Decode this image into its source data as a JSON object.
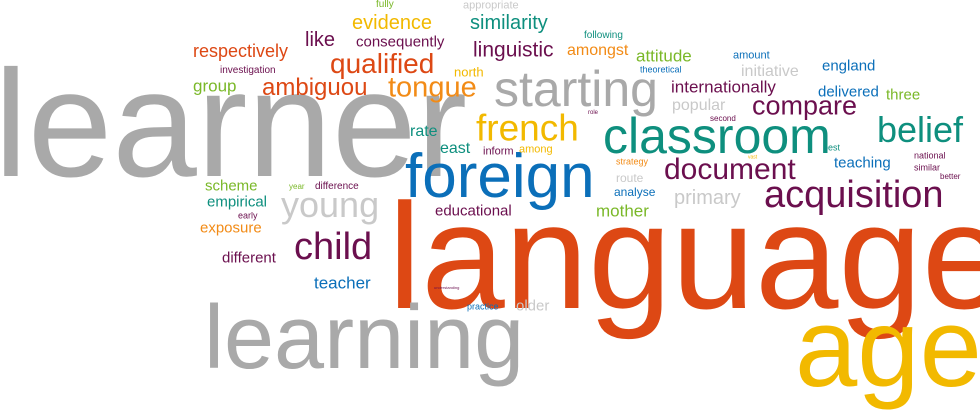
{
  "palette": {
    "gray": "#a9a9a9",
    "light_gray": "#c9c9c9",
    "red": "#dd4814",
    "blue": "#0b6fb9",
    "teal": "#0e8f7e",
    "green": "#7ab828",
    "yellow": "#f2b900",
    "purple": "#6b0f4e",
    "orange": "#f28b16"
  },
  "words": [
    {
      "text": "learner",
      "color": "gray"
    },
    {
      "text": "language",
      "color": "red"
    },
    {
      "text": "age",
      "color": "yellow"
    },
    {
      "text": "learning",
      "color": "gray"
    },
    {
      "text": "foreign",
      "color": "blue"
    },
    {
      "text": "classroom",
      "color": "teal"
    },
    {
      "text": "starting",
      "color": "gray"
    },
    {
      "text": "french",
      "color": "yellow"
    },
    {
      "text": "acquisition",
      "color": "purple"
    },
    {
      "text": "child",
      "color": "purple"
    },
    {
      "text": "belief",
      "color": "teal"
    },
    {
      "text": "young",
      "color": "light_gray"
    },
    {
      "text": "document",
      "color": "purple"
    },
    {
      "text": "compare",
      "color": "purple"
    },
    {
      "text": "tongue",
      "color": "orange"
    },
    {
      "text": "qualified",
      "color": "red"
    },
    {
      "text": "ambiguou",
      "color": "red"
    },
    {
      "text": "respectively",
      "color": "red"
    },
    {
      "text": "evidence",
      "color": "yellow"
    },
    {
      "text": "similarity",
      "color": "teal"
    },
    {
      "text": "linguistic",
      "color": "purple"
    },
    {
      "text": "like",
      "color": "purple"
    },
    {
      "text": "consequently",
      "color": "purple"
    },
    {
      "text": "amongst",
      "color": "orange"
    },
    {
      "text": "attitude",
      "color": "green"
    },
    {
      "text": "internationally",
      "color": "purple"
    },
    {
      "text": "initiative",
      "color": "light_gray"
    },
    {
      "text": "england",
      "color": "blue"
    },
    {
      "text": "delivered",
      "color": "blue"
    },
    {
      "text": "three",
      "color": "green"
    },
    {
      "text": "teaching",
      "color": "blue"
    },
    {
      "text": "primary",
      "color": "light_gray"
    },
    {
      "text": "mother",
      "color": "green"
    },
    {
      "text": "educational",
      "color": "purple"
    },
    {
      "text": "rate",
      "color": "teal"
    },
    {
      "text": "east",
      "color": "teal"
    },
    {
      "text": "group",
      "color": "green"
    },
    {
      "text": "teacher",
      "color": "blue"
    },
    {
      "text": "different",
      "color": "purple"
    },
    {
      "text": "scheme",
      "color": "green"
    },
    {
      "text": "empirical",
      "color": "teal"
    },
    {
      "text": "exposure",
      "color": "orange"
    },
    {
      "text": "popular",
      "color": "light_gray"
    },
    {
      "text": "north",
      "color": "yellow"
    },
    {
      "text": "older",
      "color": "light_gray"
    },
    {
      "text": "inform",
      "color": "purple"
    },
    {
      "text": "among",
      "color": "yellow"
    },
    {
      "text": "route",
      "color": "light_gray"
    },
    {
      "text": "analyse",
      "color": "blue"
    },
    {
      "text": "fully",
      "color": "green"
    },
    {
      "text": "appropriate",
      "color": "light_gray"
    },
    {
      "text": "following",
      "color": "teal"
    },
    {
      "text": "amount",
      "color": "blue"
    },
    {
      "text": "investigation",
      "color": "purple"
    },
    {
      "text": "theoretical",
      "color": "blue"
    },
    {
      "text": "difference",
      "color": "purple"
    },
    {
      "text": "year",
      "color": "green"
    },
    {
      "text": "early",
      "color": "purple"
    },
    {
      "text": "practice",
      "color": "blue"
    },
    {
      "text": "strategy",
      "color": "orange"
    },
    {
      "text": "second",
      "color": "purple"
    },
    {
      "text": "best",
      "color": "teal"
    },
    {
      "text": "national",
      "color": "purple"
    },
    {
      "text": "similar",
      "color": "purple"
    },
    {
      "text": "better",
      "color": "purple"
    },
    {
      "text": "role",
      "color": "purple"
    },
    {
      "text": "understanding",
      "color": "purple"
    },
    {
      "text": "vast",
      "color": "yellow"
    }
  ]
}
